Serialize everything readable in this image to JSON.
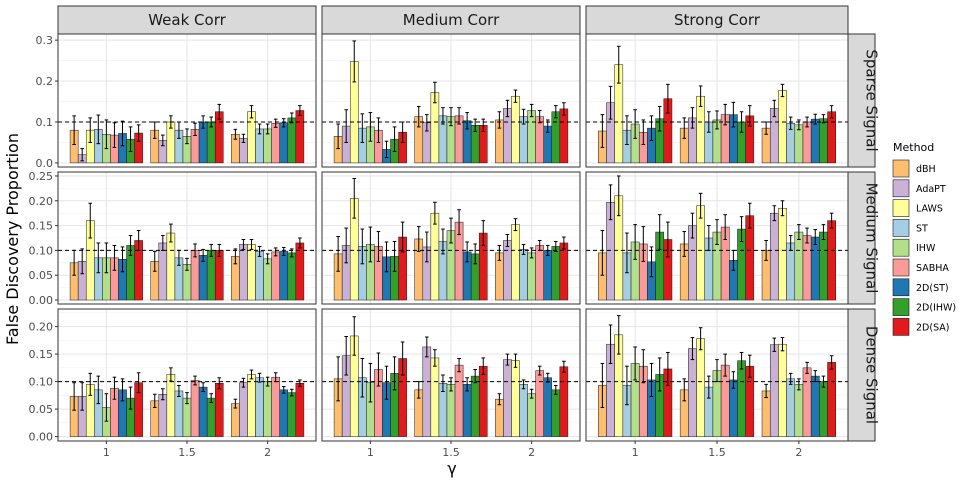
{
  "chart_data": {
    "type": "bar",
    "ylabel": "False Discovery Proportion",
    "xlabel": "γ",
    "x_categories": [
      "1",
      "1.5",
      "2"
    ],
    "col_facets": [
      "Weak Corr",
      "Medium Corr",
      "Strong Corr"
    ],
    "row_facets": [
      "Sparse Signal",
      "Medium Signal",
      "Dense Signal"
    ],
    "reference_line": 0.1,
    "legend": {
      "title": "Method",
      "position": "right"
    },
    "methods": [
      {
        "name": "dBH",
        "color": "#FDBF6F"
      },
      {
        "name": "AdaPT",
        "color": "#CAB2D6"
      },
      {
        "name": "LAWS",
        "color": "#FFFF99"
      },
      {
        "name": "ST",
        "color": "#A6CEE3"
      },
      {
        "name": "IHW",
        "color": "#B2DF8A"
      },
      {
        "name": "SABHA",
        "color": "#FB9A99"
      },
      {
        "name": "2D(ST)",
        "color": "#1F78B4"
      },
      {
        "name": "2D(IHW)",
        "color": "#33A02C"
      },
      {
        "name": "2D(SA)",
        "color": "#E31A1C"
      }
    ],
    "rows": [
      {
        "ylim": [
          -0.01,
          0.315
        ],
        "yticks": [
          0.0,
          0.1,
          0.2,
          0.3
        ],
        "tick_labels": [
          "0.0",
          "0.1",
          "0.2",
          "0.3"
        ],
        "panels": [
          {
            "values": [
              [
                0.08,
                0.02,
                0.08,
                0.082,
                0.07,
                0.068,
                0.072,
                0.058,
                0.073
              ],
              [
                0.08,
                0.055,
                0.1,
                0.08,
                0.065,
                0.082,
                0.1,
                0.1,
                0.125
              ],
              [
                0.07,
                0.06,
                0.125,
                0.083,
                0.083,
                0.097,
                0.098,
                0.11,
                0.128
              ]
            ],
            "errors": [
              [
                0.035,
                0.015,
                0.03,
                0.035,
                0.035,
                0.03,
                0.03,
                0.03,
                0.02
              ],
              [
                0.02,
                0.013,
                0.015,
                0.02,
                0.018,
                0.015,
                0.015,
                0.012,
                0.018
              ],
              [
                0.012,
                0.01,
                0.015,
                0.012,
                0.012,
                0.01,
                0.01,
                0.012,
                0.012
              ]
            ]
          },
          {
            "values": [
              [
                0.065,
                0.09,
                0.248,
                0.085,
                0.088,
                0.08,
                0.033,
                0.058,
                0.075
              ],
              [
                0.113,
                0.098,
                0.172,
                0.115,
                0.113,
                0.115,
                0.103,
                0.092,
                0.092
              ],
              [
                0.105,
                0.133,
                0.163,
                0.113,
                0.128,
                0.113,
                0.09,
                0.125,
                0.132
              ]
            ],
            "errors": [
              [
                0.03,
                0.04,
                0.05,
                0.035,
                0.035,
                0.03,
                0.02,
                0.03,
                0.025
              ],
              [
                0.025,
                0.02,
                0.025,
                0.02,
                0.022,
                0.02,
                0.02,
                0.015,
                0.015
              ],
              [
                0.02,
                0.02,
                0.015,
                0.018,
                0.015,
                0.015,
                0.015,
                0.015,
                0.015
              ]
            ]
          },
          {
            "values": [
              [
                0.078,
                0.147,
                0.24,
                0.08,
                0.095,
                0.075,
                0.085,
                0.108,
                0.157
              ],
              [
                0.085,
                0.11,
                0.163,
                0.1,
                0.105,
                0.118,
                0.118,
                0.1,
                0.115
              ],
              [
                0.085,
                0.133,
                0.177,
                0.097,
                0.093,
                0.1,
                0.107,
                0.108,
                0.125
              ]
            ],
            "errors": [
              [
                0.04,
                0.04,
                0.045,
                0.035,
                0.035,
                0.03,
                0.03,
                0.03,
                0.035
              ],
              [
                0.025,
                0.025,
                0.025,
                0.025,
                0.022,
                0.025,
                0.03,
                0.025,
                0.025
              ],
              [
                0.015,
                0.02,
                0.015,
                0.015,
                0.012,
                0.012,
                0.012,
                0.01,
                0.015
              ]
            ]
          }
        ]
      },
      {
        "ylim": [
          -0.008,
          0.258
        ],
        "yticks": [
          0.0,
          0.05,
          0.1,
          0.15,
          0.2,
          0.25
        ],
        "tick_labels": [
          "0.00",
          "0.05",
          "0.10",
          "0.15",
          "0.20",
          "0.25"
        ],
        "panels": [
          {
            "values": [
              [
                0.075,
                0.078,
                0.16,
                0.085,
                0.085,
                0.085,
                0.082,
                0.11,
                0.12
              ],
              [
                0.078,
                0.115,
                0.135,
                0.085,
                0.072,
                0.1,
                0.09,
                0.1,
                0.1
              ],
              [
                0.088,
                0.112,
                0.112,
                0.098,
                0.083,
                0.097,
                0.098,
                0.095,
                0.115
              ]
            ],
            "errors": [
              [
                0.025,
                0.025,
                0.035,
                0.03,
                0.03,
                0.025,
                0.025,
                0.02,
                0.02
              ],
              [
                0.02,
                0.015,
                0.018,
                0.015,
                0.012,
                0.013,
                0.012,
                0.012,
                0.012
              ],
              [
                0.015,
                0.01,
                0.01,
                0.01,
                0.01,
                0.008,
                0.008,
                0.008,
                0.01
              ]
            ]
          },
          {
            "values": [
              [
                0.093,
                0.11,
                0.205,
                0.108,
                0.112,
                0.108,
                0.087,
                0.088,
                0.127
              ],
              [
                0.123,
                0.107,
                0.175,
                0.118,
                0.14,
                0.157,
                0.097,
                0.093,
                0.135
              ],
              [
                0.095,
                0.12,
                0.152,
                0.102,
                0.095,
                0.11,
                0.1,
                0.108,
                0.115
              ]
            ],
            "errors": [
              [
                0.035,
                0.035,
                0.04,
                0.035,
                0.035,
                0.03,
                0.03,
                0.03,
                0.03
              ],
              [
                0.025,
                0.03,
                0.022,
                0.025,
                0.025,
                0.025,
                0.02,
                0.02,
                0.025
              ],
              [
                0.015,
                0.012,
                0.012,
                0.01,
                0.01,
                0.01,
                0.01,
                0.01,
                0.012
              ]
            ]
          },
          {
            "values": [
              [
                0.095,
                0.197,
                0.21,
                0.095,
                0.117,
                0.113,
                0.077,
                0.137,
                0.122
              ],
              [
                0.113,
                0.15,
                0.19,
                0.125,
                0.137,
                0.147,
                0.08,
                0.143,
                0.17
              ],
              [
                0.1,
                0.175,
                0.185,
                0.115,
                0.137,
                0.13,
                0.127,
                0.137,
                0.16
              ]
            ],
            "errors": [
              [
                0.045,
                0.035,
                0.04,
                0.04,
                0.035,
                0.035,
                0.03,
                0.035,
                0.035
              ],
              [
                0.025,
                0.025,
                0.025,
                0.025,
                0.025,
                0.025,
                0.02,
                0.025,
                0.025
              ],
              [
                0.02,
                0.015,
                0.015,
                0.015,
                0.015,
                0.015,
                0.015,
                0.015,
                0.015
              ]
            ]
          }
        ]
      },
      {
        "ylim": [
          -0.008,
          0.232
        ],
        "yticks": [
          0.0,
          0.05,
          0.1,
          0.15,
          0.2
        ],
        "tick_labels": [
          "0.00",
          "0.05",
          "0.10",
          "0.15",
          "0.20"
        ],
        "panels": [
          {
            "values": [
              [
                0.073,
                0.073,
                0.095,
                0.085,
                0.053,
                0.088,
                0.085,
                0.07,
                0.098
              ],
              [
                0.065,
                0.077,
                0.113,
                0.083,
                0.07,
                0.102,
                0.09,
                0.07,
                0.097
              ],
              [
                0.06,
                0.098,
                0.113,
                0.107,
                0.1,
                0.108,
                0.085,
                0.08,
                0.097
              ]
            ],
            "errors": [
              [
                0.025,
                0.025,
                0.02,
                0.025,
                0.025,
                0.02,
                0.02,
                0.02,
                0.018
              ],
              [
                0.012,
                0.01,
                0.012,
                0.01,
                0.01,
                0.008,
                0.008,
                0.008,
                0.01
              ],
              [
                0.008,
                0.008,
                0.008,
                0.008,
                0.008,
                0.008,
                0.006,
                0.006,
                0.006
              ]
            ]
          },
          {
            "values": [
              [
                0.105,
                0.147,
                0.183,
                0.107,
                0.098,
                0.122,
                0.098,
                0.115,
                0.142
              ],
              [
                0.085,
                0.163,
                0.143,
                0.097,
                0.095,
                0.13,
                0.095,
                0.11,
                0.128
              ],
              [
                0.068,
                0.14,
                0.138,
                0.095,
                0.078,
                0.12,
                0.107,
                0.085,
                0.127
              ]
            ],
            "errors": [
              [
                0.04,
                0.035,
                0.035,
                0.035,
                0.035,
                0.03,
                0.03,
                0.03,
                0.03
              ],
              [
                0.015,
                0.018,
                0.015,
                0.015,
                0.012,
                0.012,
                0.012,
                0.012,
                0.015
              ],
              [
                0.01,
                0.01,
                0.012,
                0.008,
                0.008,
                0.008,
                0.008,
                0.008,
                0.01
              ]
            ]
          },
          {
            "values": [
              [
                0.093,
                0.168,
                0.185,
                0.093,
                0.133,
                0.128,
                0.103,
                0.113,
                0.123
              ],
              [
                0.085,
                0.16,
                0.178,
                0.09,
                0.12,
                0.13,
                0.103,
                0.138,
                0.128
              ],
              [
                0.083,
                0.167,
                0.168,
                0.105,
                0.095,
                0.125,
                0.11,
                0.1,
                0.135
              ]
            ],
            "errors": [
              [
                0.04,
                0.035,
                0.035,
                0.035,
                0.03,
                0.03,
                0.03,
                0.03,
                0.03
              ],
              [
                0.02,
                0.02,
                0.02,
                0.02,
                0.02,
                0.02,
                0.015,
                0.015,
                0.02
              ],
              [
                0.012,
                0.012,
                0.012,
                0.01,
                0.01,
                0.01,
                0.01,
                0.01,
                0.012
              ]
            ]
          }
        ]
      }
    ]
  }
}
